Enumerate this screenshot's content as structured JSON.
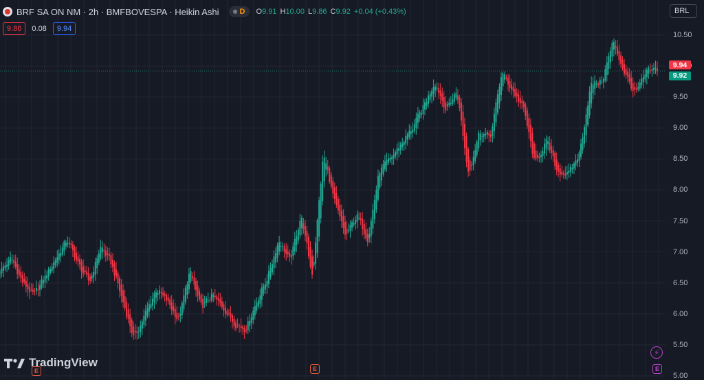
{
  "header": {
    "title": "BRF SA ON NM · 2h · BMFBOVESPA · Heikin Ashi",
    "badge_letter": "D",
    "ohlc": [
      {
        "key": "O",
        "value": "9.91"
      },
      {
        "key": "H",
        "value": "10.00"
      },
      {
        "key": "L",
        "value": "9.86"
      },
      {
        "key": "C",
        "value": "9.92"
      }
    ],
    "change": "+0.04 (+0.43%)"
  },
  "quote": {
    "bid": "9.86",
    "spread": "0.08",
    "ask": "9.94"
  },
  "currency": "BRL",
  "logo": {
    "text": "TradingView"
  },
  "events": {
    "earnings_letter": "E",
    "bolt_glyph": "⚡"
  },
  "colors": {
    "up": "#22ab94",
    "down": "#f23645",
    "background": "#161a25",
    "grid": "#242733"
  },
  "icons": [
    "symbol-logo-icon",
    "market-status-icon",
    "tradingview-logo-icon",
    "earnings-icon",
    "bolt-icon"
  ],
  "chart_data": {
    "type": "candlestick",
    "style": "Heikin Ashi",
    "ylim": [
      5.0,
      10.6
    ],
    "y_ticks": [
      "10.50",
      "10.00",
      "9.50",
      "9.00",
      "8.50",
      "8.00",
      "7.50",
      "7.00",
      "6.50",
      "6.00",
      "5.50",
      "5.00"
    ],
    "price_tags": [
      {
        "label": "9.94",
        "value": 9.94,
        "color": "#f23645"
      },
      {
        "label": "9.92",
        "value": 9.92,
        "color": "#089981"
      }
    ],
    "grid": true,
    "path": [
      6.7,
      6.9,
      6.5,
      6.3,
      6.6,
      6.9,
      7.2,
      6.8,
      6.5,
      7.1,
      6.8,
      6.2,
      5.6,
      6.0,
      6.4,
      6.2,
      5.9,
      6.7,
      6.1,
      6.3,
      6.1,
      5.85,
      5.75,
      6.2,
      6.6,
      7.2,
      6.85,
      7.6,
      6.6,
      8.6,
      7.8,
      7.25,
      7.6,
      7.2,
      8.3,
      8.5,
      8.75,
      9.0,
      9.35,
      9.75,
      9.3,
      9.6,
      8.25,
      8.95,
      8.85,
      9.9,
      9.6,
      9.3,
      8.4,
      8.8,
      8.3,
      8.25,
      8.6,
      9.7,
      9.75,
      10.4,
      9.9,
      9.55,
      9.9,
      9.95
    ]
  }
}
